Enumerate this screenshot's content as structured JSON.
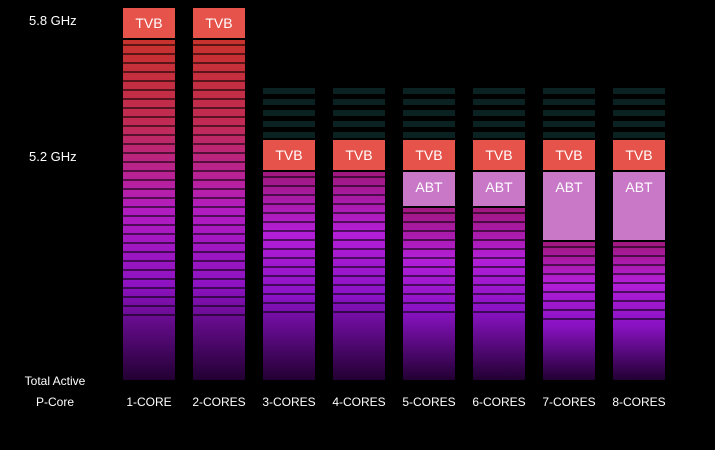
{
  "chart_data": {
    "type": "bar",
    "categories": [
      "1-CORE",
      "2-CORES",
      "3-CORES",
      "4-CORES",
      "5-CORES",
      "6-CORES",
      "7-CORES",
      "8-CORES"
    ],
    "y_ticks": [
      "5.8 GHz",
      "5.2 GHz"
    ],
    "y_axis_caption_line1": "Total Active",
    "y_axis_caption_line2": "P-Core",
    "tags": {
      "tvb": "TVB",
      "abt": "ABT"
    },
    "units": "GHz",
    "series": [
      {
        "name": "TVB",
        "values": [
          5.8,
          5.8,
          5.2,
          5.2,
          5.2,
          5.2,
          5.2,
          5.2
        ]
      },
      {
        "name": "ABT",
        "values": [
          null,
          null,
          null,
          null,
          5.1,
          5.1,
          5.0,
          5.0
        ]
      }
    ],
    "colors": {
      "tvb_tag": "#e5534b",
      "abt_tag": "#c978c8",
      "bar_top": "#c8322c",
      "bar_mid": "#a81ed8",
      "bar_bottom": "#220032",
      "faded_stripes": "#0d2a2a"
    }
  }
}
